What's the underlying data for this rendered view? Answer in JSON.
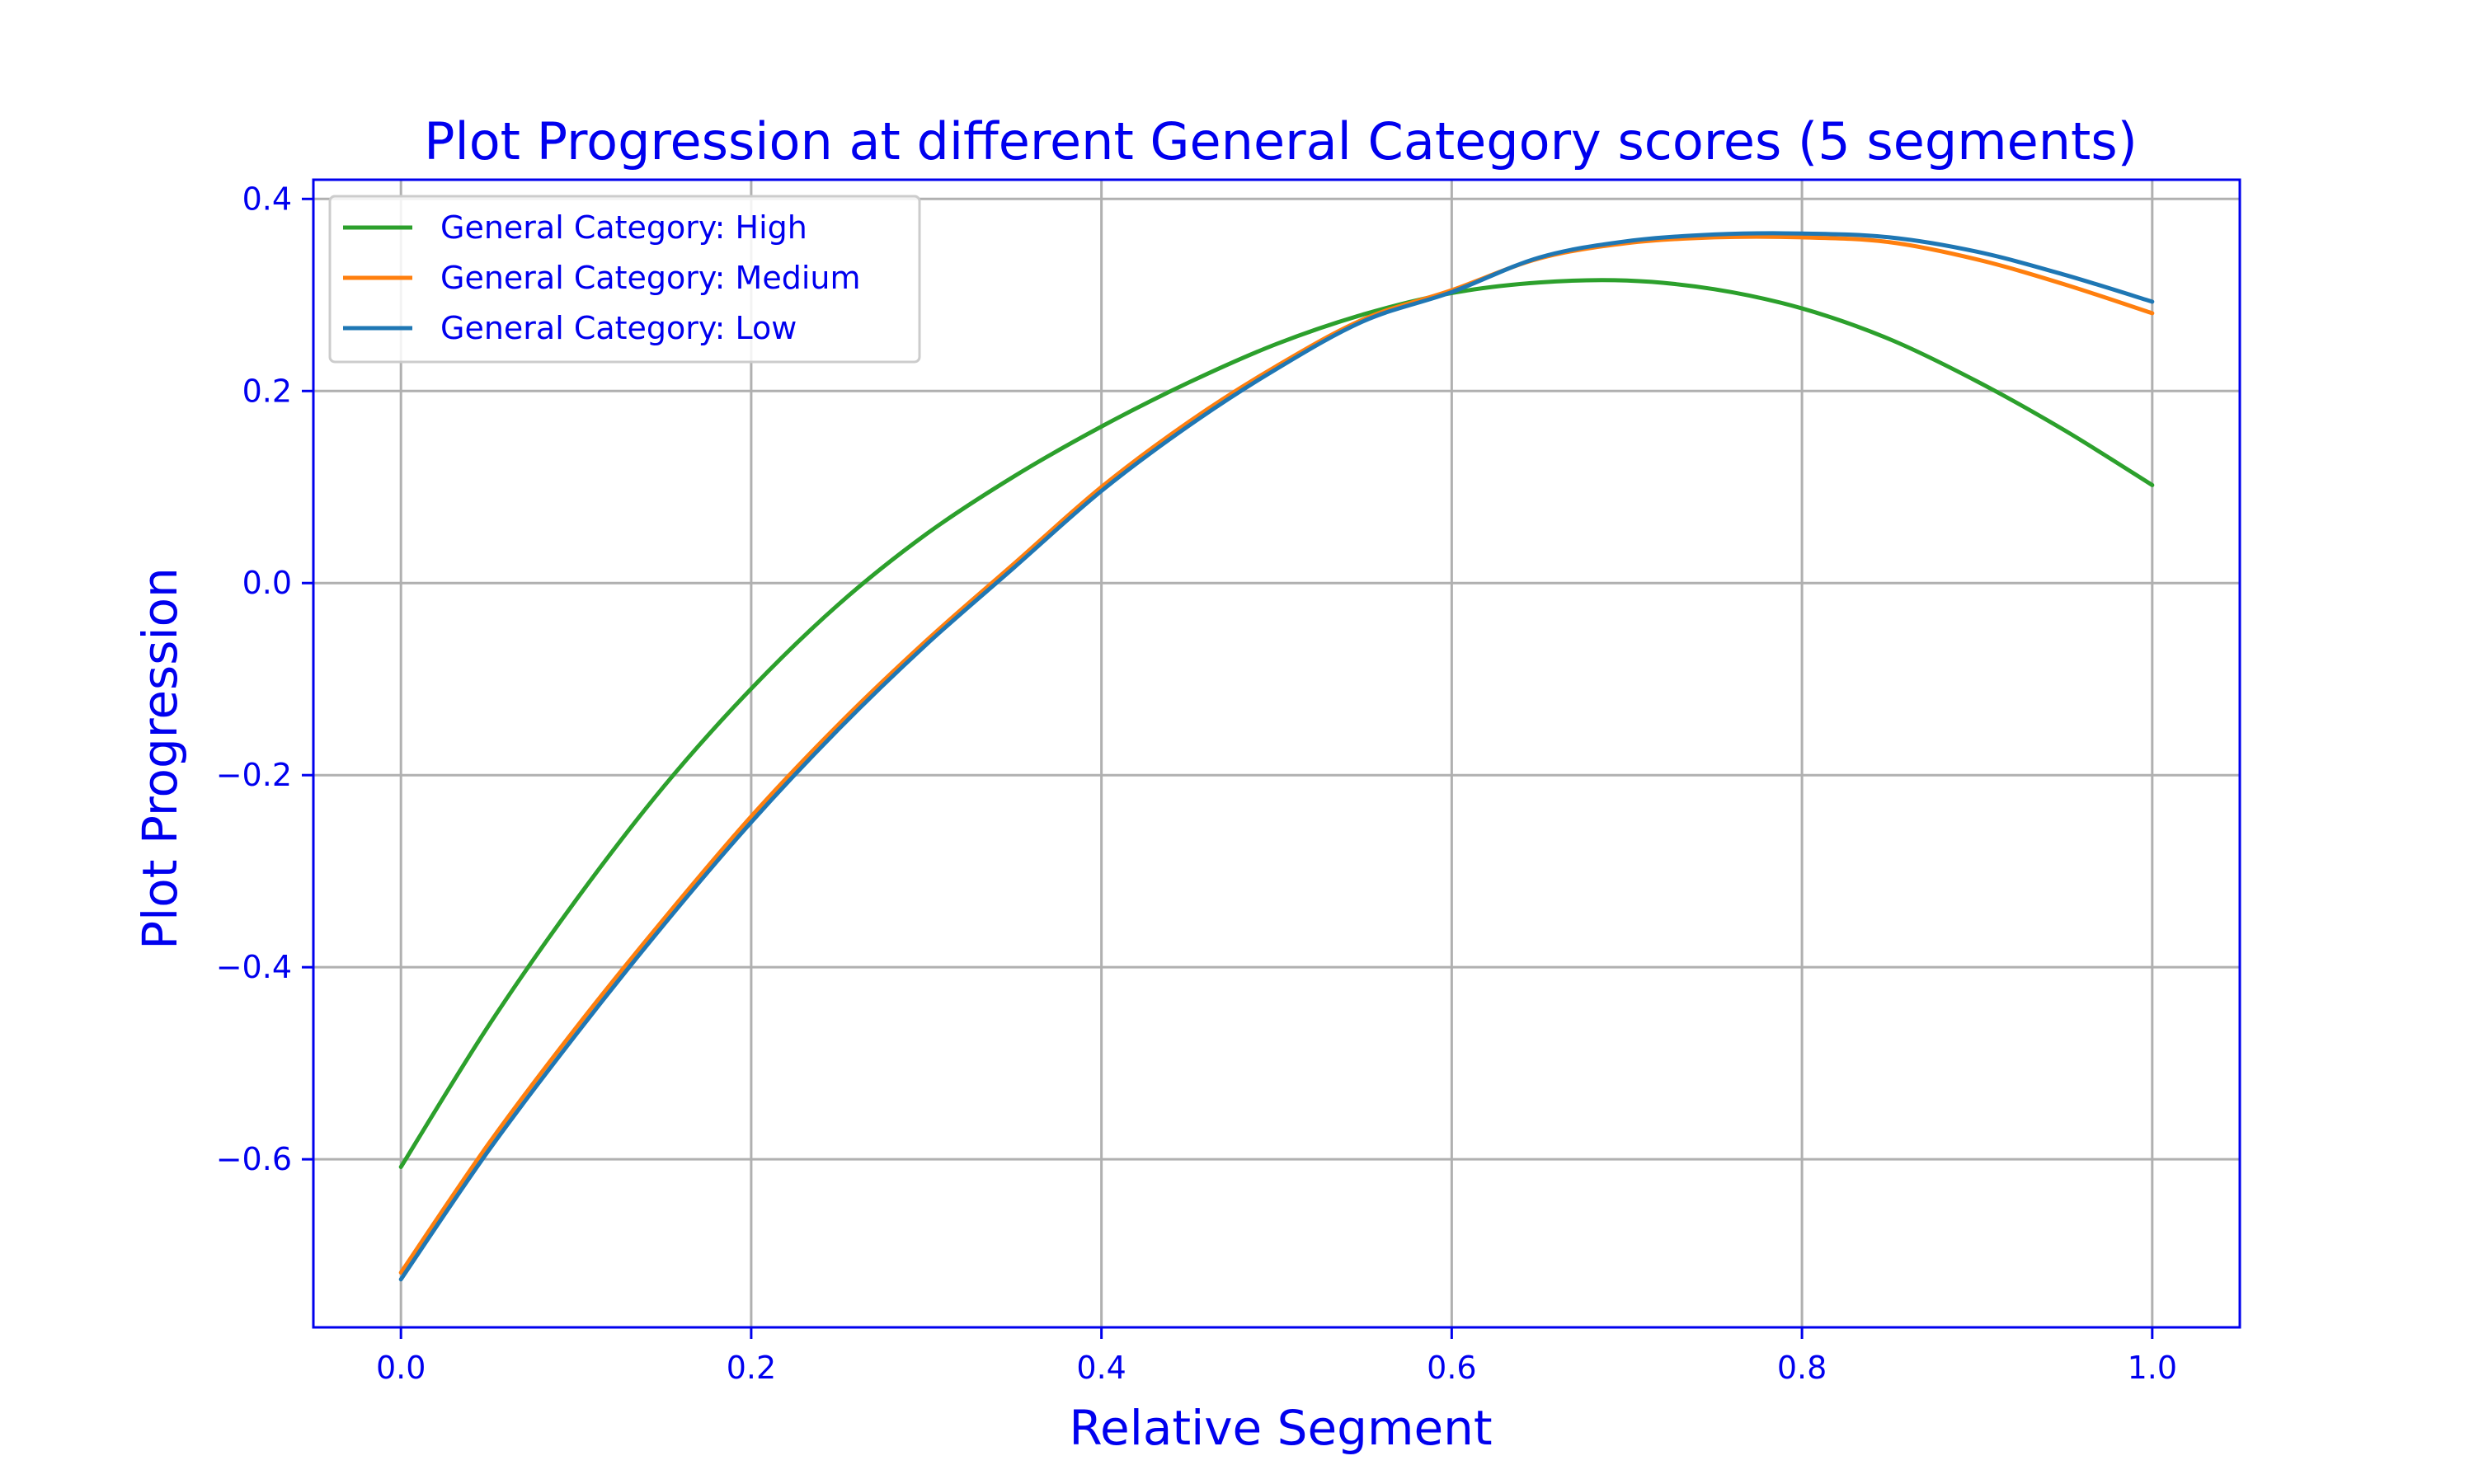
{
  "chart_data": {
    "type": "line",
    "title": "Plot Progression at different General Category scores (5 segments)",
    "xlabel": "Relative Segment",
    "ylabel": "Plot Progression",
    "xlim": [
      -0.05,
      1.05
    ],
    "ylim": [
      -0.775,
      0.42
    ],
    "xticks": [
      0.0,
      0.2,
      0.4,
      0.6,
      0.8,
      1.0
    ],
    "xtick_labels": [
      "0.0",
      "0.2",
      "0.4",
      "0.6",
      "0.8",
      "1.0"
    ],
    "yticks": [
      -0.6,
      -0.4,
      -0.2,
      0.0,
      0.2,
      0.4
    ],
    "ytick_labels": [
      "−0.6",
      "−0.4",
      "−0.2",
      "0.0",
      "0.2",
      "0.4"
    ],
    "grid": true,
    "legend_position": "top-left",
    "x": [
      0.0,
      0.05,
      0.1,
      0.15,
      0.2,
      0.25,
      0.3,
      0.35,
      0.4,
      0.45,
      0.5,
      0.55,
      0.6,
      0.65,
      0.7,
      0.75,
      0.8,
      0.85,
      0.9,
      0.95,
      1.0
    ],
    "series": [
      {
        "name": "General Category: High",
        "color": "#2ca02c",
        "values": [
          -0.608,
          -0.461,
          -0.33,
          -0.212,
          -0.11,
          -0.022,
          0.051,
          0.111,
          0.163,
          0.209,
          0.249,
          0.28,
          0.302,
          0.313,
          0.315,
          0.306,
          0.286,
          0.254,
          0.21,
          0.159,
          0.102
        ]
      },
      {
        "name": "General Category: Medium",
        "color": "#ff7f0e",
        "values": [
          -0.718,
          -0.584,
          -0.463,
          -0.35,
          -0.243,
          -0.147,
          -0.06,
          0.02,
          0.1,
          0.168,
          0.226,
          0.275,
          0.305,
          0.338,
          0.354,
          0.36,
          0.36,
          0.355,
          0.337,
          0.311,
          0.281
        ]
      },
      {
        "name": "General Category: Low",
        "color": "#1f77b4",
        "values": [
          -0.725,
          -0.591,
          -0.47,
          -0.356,
          -0.249,
          -0.152,
          -0.064,
          0.016,
          0.096,
          0.164,
          0.223,
          0.273,
          0.303,
          0.339,
          0.356,
          0.363,
          0.364,
          0.36,
          0.345,
          0.321,
          0.293
        ]
      }
    ]
  }
}
